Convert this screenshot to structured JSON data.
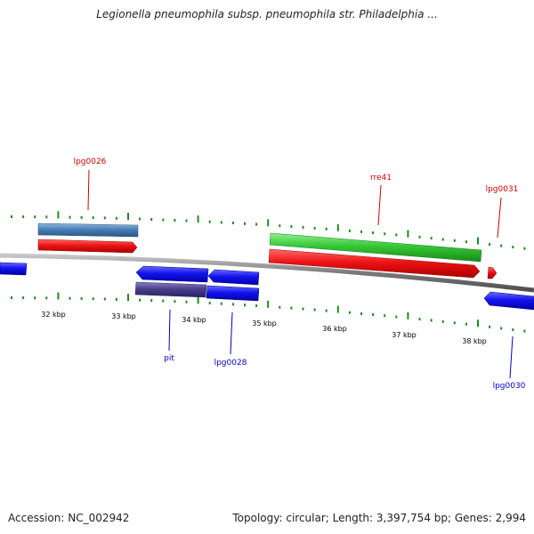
{
  "title": "Legionella pneumophila subsp. pneumophila str. Philadelphia ...",
  "footer": {
    "accession": "Accession: NC_002942",
    "summary": "Topology: circular; Length: 3,397,754 bp; Genes: 2,994"
  },
  "colors": {
    "backbone": "#8c8c8c",
    "tick": "#1f8a1f",
    "forward_label": "#cc0000",
    "reverse_label": "#0000cc",
    "gene_blue": "#1010e0",
    "gene_red": "#e01010",
    "gene_green": "#30c030",
    "gene_steelblue": "#4a7fb5",
    "gene_slate": "#4a3f8a"
  },
  "scale_labels": [
    "32 kbp",
    "33 kbp",
    "34 kbp",
    "35 kbp",
    "36 kbp",
    "37 kbp",
    "38 kbp"
  ],
  "gene_labels": {
    "lpg0026": "lpg0026",
    "rre41": "rre41",
    "lpg0031": "lpg0031",
    "pit": "pit",
    "lpg0028": "lpg0028",
    "lpg0030": "lpg0030"
  }
}
